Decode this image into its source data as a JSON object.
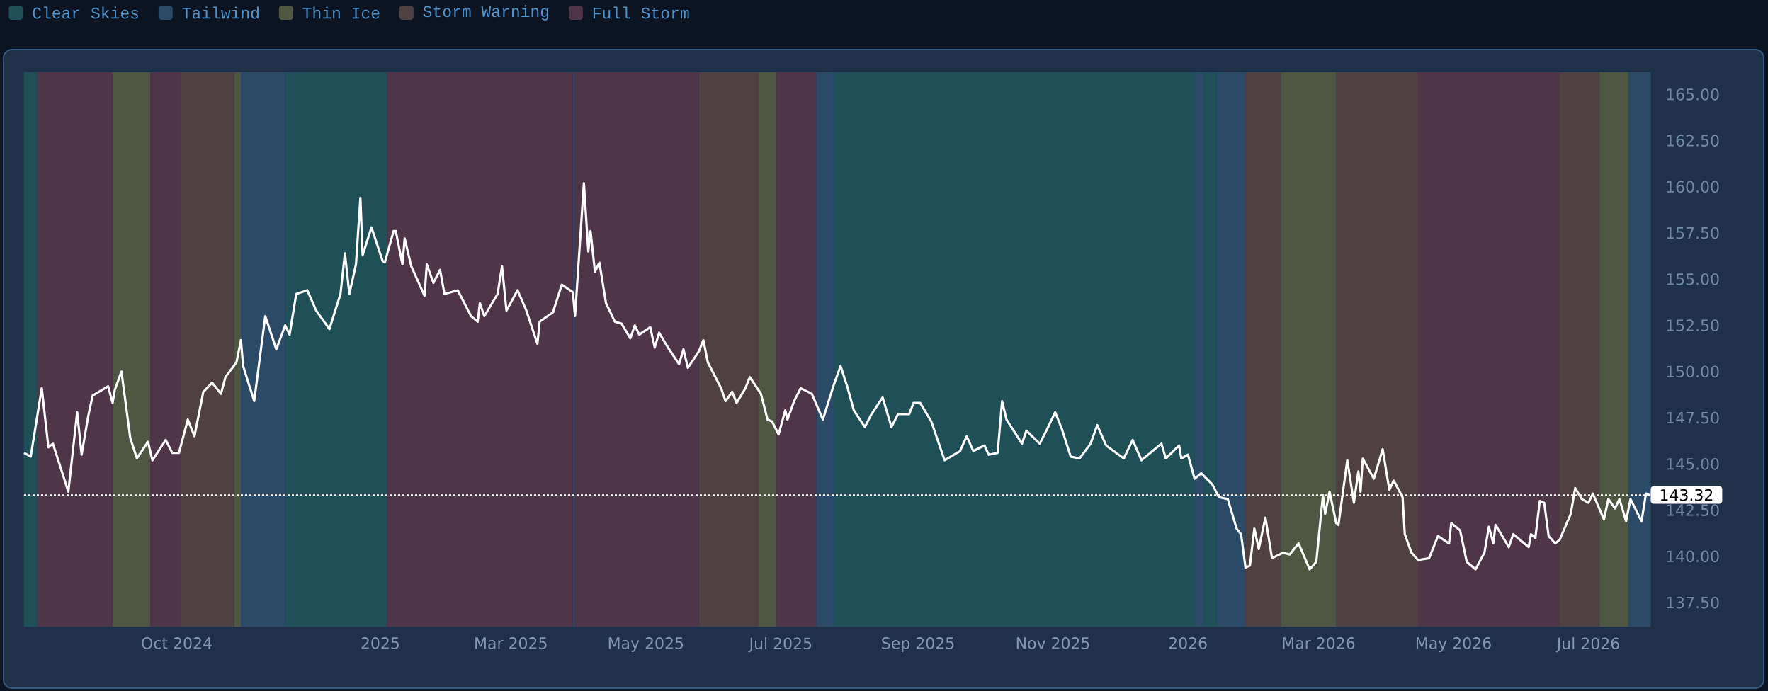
{
  "chart_data": {
    "type": "line",
    "color": "#ffffff",
    "legend": "top left",
    "xlim": [
      "2024-07-24",
      "2026-07-29"
    ],
    "ylim": [
      136.2,
      166.2
    ],
    "xticks": [
      {
        "value": "2024-10-01",
        "label": "Oct 2024"
      },
      {
        "value": "2025-01-01",
        "label": "2025"
      },
      {
        "value": "2025-03-01",
        "label": "Mar 2025"
      },
      {
        "value": "2025-05-01",
        "label": "May 2025"
      },
      {
        "value": "2025-07-01",
        "label": "Jul 2025"
      },
      {
        "value": "2025-09-01",
        "label": "Sep 2025"
      },
      {
        "value": "2025-11-01",
        "label": "Nov 2025"
      },
      {
        "value": "2026-01-01",
        "label": "2026"
      },
      {
        "value": "2026-03-01",
        "label": "Mar 2026"
      },
      {
        "value": "2026-05-01",
        "label": "May 2026"
      },
      {
        "value": "2026-07-01",
        "label": "Jul 2026"
      }
    ],
    "yticks": [
      {
        "value": 137.5,
        "label": "137.50"
      },
      {
        "value": 140,
        "label": "140.00"
      },
      {
        "value": 142.5,
        "label": "142.50"
      },
      {
        "value": 145,
        "label": "145.00"
      },
      {
        "value": 147.5,
        "label": "147.50"
      },
      {
        "value": 150,
        "label": "150.00"
      },
      {
        "value": 152.5,
        "label": "152.50"
      },
      {
        "value": 155,
        "label": "155.00"
      },
      {
        "value": 157.5,
        "label": "157.50"
      },
      {
        "value": 160,
        "label": "160.00"
      },
      {
        "value": 162.5,
        "label": "162.50"
      },
      {
        "value": 165,
        "label": "165.00"
      }
    ],
    "ref_lines": [
      {
        "axis": "y",
        "value": 143.32,
        "label": "143.32",
        "color": "#ffffff",
        "line_style": "dotted"
      }
    ],
    "bands": [
      {
        "axis": "x",
        "from": "2024-07-24",
        "to": "2024-07-30",
        "label": "Clear Skies",
        "color": "#1f5058"
      },
      {
        "axis": "x",
        "from": "2024-11-19",
        "to": "2025-01-04",
        "color": "#1f5058"
      },
      {
        "axis": "x",
        "from": "2025-07-25",
        "to": "2026-01-04",
        "color": "#1f5058"
      },
      {
        "axis": "x",
        "from": "2026-01-08",
        "to": "2026-01-14",
        "color": "#1f5058"
      },
      {
        "axis": "x",
        "from": "2024-10-30",
        "to": "2024-11-19",
        "label": "Tailwind",
        "color": "#2a4a68"
      },
      {
        "axis": "x",
        "from": "2025-03-29",
        "to": "2025-03-30",
        "color": "#2a4a68"
      },
      {
        "axis": "x",
        "from": "2025-07-17",
        "to": "2025-07-25",
        "color": "#2a4a68"
      },
      {
        "axis": "x",
        "from": "2026-01-04",
        "to": "2026-01-08",
        "color": "#2a4a68"
      },
      {
        "axis": "x",
        "from": "2026-01-14",
        "to": "2026-01-27",
        "color": "#2a4a68"
      },
      {
        "axis": "x",
        "from": "2026-07-19",
        "to": "2026-07-29",
        "color": "#2a4a68"
      },
      {
        "axis": "x",
        "from": "2024-09-02",
        "to": "2024-09-19",
        "label": "Thin Ice",
        "color": "#4f5742"
      },
      {
        "axis": "x",
        "from": "2024-10-27",
        "to": "2024-10-30",
        "color": "#4f5742"
      },
      {
        "axis": "x",
        "from": "2025-06-21",
        "to": "2025-06-29",
        "color": "#4f5742"
      },
      {
        "axis": "x",
        "from": "2026-02-12",
        "to": "2026-03-09",
        "color": "#4f5742"
      },
      {
        "axis": "x",
        "from": "2026-07-06",
        "to": "2026-07-19",
        "color": "#4f5742"
      },
      {
        "axis": "x",
        "from": "2024-10-03",
        "to": "2024-10-27",
        "label": "Storm Warning",
        "color": "#4f4042"
      },
      {
        "axis": "x",
        "from": "2025-05-25",
        "to": "2025-06-21",
        "color": "#4f4042"
      },
      {
        "axis": "x",
        "from": "2026-01-27",
        "to": "2026-02-12",
        "color": "#4f4042"
      },
      {
        "axis": "x",
        "from": "2026-03-09",
        "to": "2026-04-15",
        "color": "#4f4042"
      },
      {
        "axis": "x",
        "from": "2026-06-18",
        "to": "2026-07-06",
        "color": "#4f4042"
      },
      {
        "axis": "x",
        "from": "2024-07-30",
        "to": "2024-09-02",
        "label": "Full Storm",
        "color": "#4f3548"
      },
      {
        "axis": "x",
        "from": "2024-09-19",
        "to": "2024-10-03",
        "color": "#4f3548"
      },
      {
        "axis": "x",
        "from": "2025-01-04",
        "to": "2025-03-29",
        "color": "#4f3548"
      },
      {
        "axis": "x",
        "from": "2025-03-30",
        "to": "2025-05-25",
        "color": "#4f3548"
      },
      {
        "axis": "x",
        "from": "2025-06-29",
        "to": "2025-07-17",
        "color": "#4f3548"
      },
      {
        "axis": "x",
        "from": "2026-04-15",
        "to": "2026-06-18",
        "color": "#4f3548"
      }
    ],
    "x": [
      "2024-07-24",
      "2024-07-27",
      "2024-08-01",
      "2024-08-04",
      "2024-08-06",
      "2024-08-13",
      "2024-08-17",
      "2024-08-19",
      "2024-08-22",
      "2024-08-24",
      "2024-08-31",
      "2024-09-02",
      "2024-09-03",
      "2024-09-06",
      "2024-09-10",
      "2024-09-13",
      "2024-09-18",
      "2024-09-20",
      "2024-09-26",
      "2024-09-29",
      "2024-10-02",
      "2024-10-06",
      "2024-10-09",
      "2024-10-13",
      "2024-10-17",
      "2024-10-21",
      "2024-10-23",
      "2024-10-28",
      "2024-10-30",
      "2024-10-31",
      "2024-11-05",
      "2024-11-10",
      "2024-11-15",
      "2024-11-19",
      "2024-11-21",
      "2024-11-24",
      "2024-11-29",
      "2024-12-03",
      "2024-12-09",
      "2024-12-14",
      "2024-12-16",
      "2024-12-18",
      "2024-12-21",
      "2024-12-23",
      "2024-12-24",
      "2024-12-28",
      "2025-01-02",
      "2025-01-03",
      "2025-01-07",
      "2025-01-08",
      "2025-01-11",
      "2025-01-12",
      "2025-01-15",
      "2025-01-21",
      "2025-01-22",
      "2025-01-25",
      "2025-01-28",
      "2025-01-30",
      "2025-02-05",
      "2025-02-11",
      "2025-02-14",
      "2025-02-15",
      "2025-02-17",
      "2025-02-23",
      "2025-02-25",
      "2025-02-27",
      "2025-03-04",
      "2025-03-08",
      "2025-03-13",
      "2025-03-14",
      "2025-03-20",
      "2025-03-24",
      "2025-03-29",
      "2025-03-30",
      "2025-04-03",
      "2025-04-05",
      "2025-04-06",
      "2025-04-08",
      "2025-04-10",
      "2025-04-13",
      "2025-04-17",
      "2025-04-20",
      "2025-04-24",
      "2025-04-26",
      "2025-04-28",
      "2025-05-03",
      "2025-05-05",
      "2025-05-07",
      "2025-05-11",
      "2025-05-16",
      "2025-05-18",
      "2025-05-20",
      "2025-05-25",
      "2025-05-27",
      "2025-05-29",
      "2025-06-04",
      "2025-06-06",
      "2025-06-09",
      "2025-06-11",
      "2025-06-15",
      "2025-06-17",
      "2025-06-22",
      "2025-06-25",
      "2025-06-27",
      "2025-06-30",
      "2025-07-03",
      "2025-07-04",
      "2025-07-07",
      "2025-07-10",
      "2025-07-15",
      "2025-07-20",
      "2025-07-25",
      "2025-07-28",
      "2025-07-31",
      "2025-08-03",
      "2025-08-08",
      "2025-08-11",
      "2025-08-16",
      "2025-08-20",
      "2025-08-23",
      "2025-08-28",
      "2025-08-30",
      "2025-09-02",
      "2025-09-07",
      "2025-09-13",
      "2025-09-20",
      "2025-09-23",
      "2025-09-26",
      "2025-10-01",
      "2025-10-03",
      "2025-10-07",
      "2025-10-09",
      "2025-10-11",
      "2025-10-18",
      "2025-10-20",
      "2025-10-26",
      "2025-10-29",
      "2025-11-02",
      "2025-11-05",
      "2025-11-09",
      "2025-11-13",
      "2025-11-18",
      "2025-11-21",
      "2025-11-25",
      "2025-12-03",
      "2025-12-07",
      "2025-12-11",
      "2025-12-16",
      "2025-12-20",
      "2025-12-22",
      "2025-12-28",
      "2025-12-29",
      "2026-01-01",
      "2026-01-04",
      "2026-01-07",
      "2026-01-12",
      "2026-01-15",
      "2026-01-19",
      "2026-01-23",
      "2026-01-25",
      "2026-01-27",
      "2026-01-29",
      "2026-01-31",
      "2026-02-02",
      "2026-02-05",
      "2026-02-08",
      "2026-02-13",
      "2026-02-16",
      "2026-02-20",
      "2026-02-25",
      "2026-02-28",
      "2026-03-03",
      "2026-03-04",
      "2026-03-06",
      "2026-03-09",
      "2026-03-10",
      "2026-03-14",
      "2026-03-17",
      "2026-03-19",
      "2026-03-20",
      "2026-03-21",
      "2026-03-26",
      "2026-03-30",
      "2026-04-02",
      "2026-04-04",
      "2026-04-08",
      "2026-04-09",
      "2026-04-12",
      "2026-04-15",
      "2026-04-20",
      "2026-04-24",
      "2026-04-29",
      "2026-04-30",
      "2026-05-04",
      "2026-05-07",
      "2026-05-11",
      "2026-05-15",
      "2026-05-17",
      "2026-05-19",
      "2026-05-20",
      "2026-05-26",
      "2026-05-28",
      "2026-06-04",
      "2026-06-05",
      "2026-06-07",
      "2026-06-09",
      "2026-06-11",
      "2026-06-13",
      "2026-06-16",
      "2026-06-18",
      "2026-06-23",
      "2026-06-25",
      "2026-06-28",
      "2026-07-01",
      "2026-07-03",
      "2026-07-08",
      "2026-07-10",
      "2026-07-13",
      "2026-07-15",
      "2026-07-18",
      "2026-07-20",
      "2026-07-25",
      "2026-07-27",
      "2026-07-29"
    ],
    "values": [
      145.6,
      145.4,
      149.1,
      145.9,
      146.1,
      143.5,
      147.8,
      145.5,
      147.6,
      148.7,
      149.2,
      148.3,
      149.0,
      150.0,
      146.4,
      145.3,
      146.2,
      145.2,
      146.3,
      145.6,
      145.6,
      147.4,
      146.5,
      148.9,
      149.4,
      148.8,
      149.7,
      150.5,
      151.7,
      150.3,
      148.4,
      153.0,
      151.2,
      152.5,
      152.0,
      154.2,
      154.4,
      153.3,
      152.3,
      154.2,
      156.4,
      154.2,
      155.8,
      159.4,
      156.3,
      157.8,
      156.0,
      155.9,
      157.6,
      157.6,
      155.8,
      157.2,
      155.7,
      154.1,
      155.8,
      154.8,
      155.5,
      154.2,
      154.4,
      153.0,
      152.7,
      153.7,
      153.0,
      154.2,
      155.7,
      153.3,
      154.4,
      153.3,
      151.5,
      152.7,
      153.2,
      154.7,
      154.3,
      153.0,
      160.2,
      156.5,
      157.6,
      155.4,
      155.9,
      153.7,
      152.7,
      152.6,
      151.8,
      152.5,
      152.0,
      152.4,
      151.3,
      152.1,
      151.3,
      150.4,
      151.2,
      150.2,
      151.1,
      151.7,
      150.5,
      149.1,
      148.4,
      148.9,
      148.3,
      149.1,
      149.7,
      148.8,
      147.4,
      147.3,
      146.6,
      147.9,
      147.4,
      148.4,
      149.1,
      148.8,
      147.4,
      149.3,
      150.3,
      149.2,
      147.9,
      147.0,
      147.7,
      148.6,
      147.0,
      147.7,
      147.7,
      148.3,
      148.3,
      147.3,
      145.2,
      145.7,
      146.5,
      145.7,
      146.0,
      145.5,
      145.6,
      148.4,
      147.4,
      146.1,
      146.8,
      146.1,
      146.8,
      147.8,
      146.9,
      145.4,
      145.3,
      146.1,
      147.1,
      146.0,
      145.3,
      146.3,
      145.2,
      145.7,
      146.1,
      145.3,
      146.0,
      145.3,
      145.5,
      144.2,
      144.5,
      143.9,
      143.2,
      143.1,
      141.5,
      141.2,
      139.4,
      139.5,
      141.5,
      140.4,
      142.1,
      139.9,
      140.2,
      140.1,
      140.7,
      139.3,
      139.7,
      143.3,
      142.3,
      143.5,
      141.8,
      141.7,
      145.2,
      142.9,
      144.6,
      143.5,
      145.3,
      144.2,
      145.8,
      143.6,
      144.1,
      143.2,
      141.2,
      140.2,
      139.8,
      139.9,
      141.1,
      140.7,
      141.8,
      141.4,
      139.7,
      139.3,
      140.2,
      141.6,
      140.7,
      141.7,
      140.5,
      141.2,
      140.5,
      141.2,
      141.0,
      143.0,
      142.9,
      141.1,
      140.7,
      140.9,
      142.3,
      143.7,
      143.1,
      142.9,
      143.4,
      142.0,
      143.1,
      142.6,
      143.1,
      141.9,
      143.1,
      141.9,
      143.4,
      143.3
    ]
  }
}
